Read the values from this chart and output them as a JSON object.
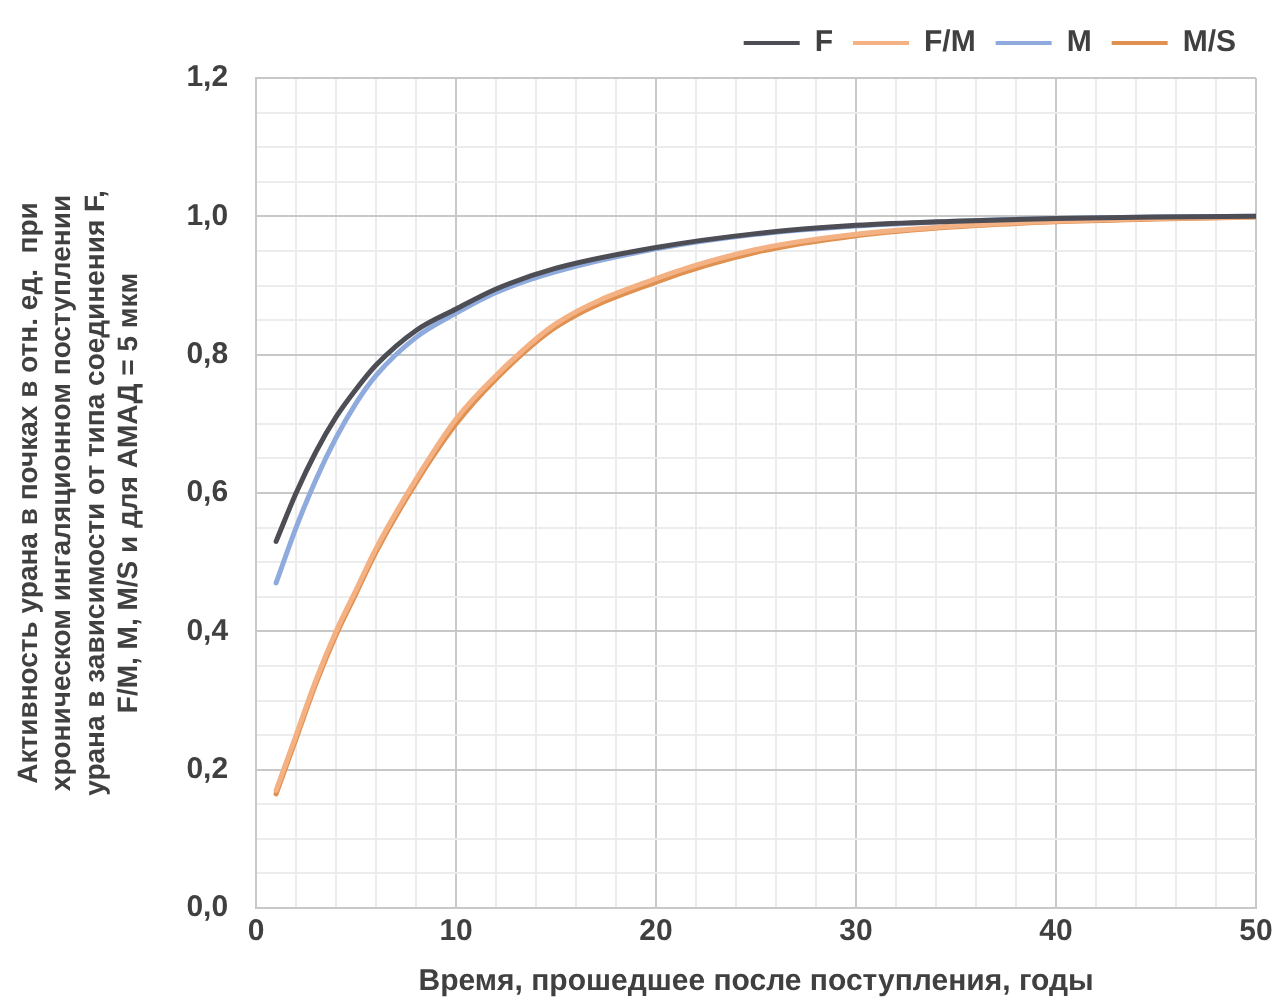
{
  "chart_data": {
    "type": "line",
    "xlabel": "Время, прошедшее после поступления, годы",
    "ylabel": "Активность урана в почках в отн. ед.  при\nхроническом ингаляционном поступлении\nурана в зависимости от типа соединения F,\nF/M, M, M/S и для АМАД = 5 мкм",
    "x": [
      1,
      2,
      3,
      4,
      5,
      6,
      8,
      10,
      12,
      15,
      20,
      25,
      30,
      35,
      40,
      45,
      50
    ],
    "series": [
      {
        "name": "F",
        "color": "#4d4d55",
        "values": [
          0.53,
          0.6,
          0.66,
          0.71,
          0.75,
          0.785,
          0.835,
          0.866,
          0.895,
          0.925,
          0.955,
          0.975,
          0.987,
          0.993,
          0.997,
          0.999,
          1.0
        ]
      },
      {
        "name": "F/M",
        "color": "#f4b183",
        "values": [
          0.17,
          0.25,
          0.33,
          0.4,
          0.46,
          0.52,
          0.62,
          0.707,
          0.77,
          0.845,
          0.91,
          0.952,
          0.974,
          0.986,
          0.993,
          0.997,
          0.999
        ]
      },
      {
        "name": "M",
        "color": "#8faadc",
        "values": [
          0.47,
          0.55,
          0.62,
          0.68,
          0.73,
          0.77,
          0.825,
          0.86,
          0.89,
          0.92,
          0.953,
          0.974,
          0.986,
          0.993,
          0.997,
          0.999,
          1.0
        ]
      },
      {
        "name": "M/S",
        "color": "#e0904f",
        "values": [
          0.165,
          0.245,
          0.325,
          0.395,
          0.455,
          0.515,
          0.615,
          0.7,
          0.765,
          0.84,
          0.905,
          0.948,
          0.972,
          0.985,
          0.992,
          0.996,
          0.999
        ]
      }
    ],
    "xlim": [
      0,
      50
    ],
    "xticks": [
      0,
      {
        "value": 2,
        "label": null
      },
      {
        "value": 4,
        "label": null
      },
      {
        "value": 6,
        "label": null
      },
      {
        "value": 8,
        "label": null
      },
      10,
      {
        "value": 12,
        "label": null
      },
      {
        "value": 14,
        "label": null
      },
      {
        "value": 16,
        "label": null
      },
      {
        "value": 18,
        "label": null
      },
      20,
      {
        "value": 22,
        "label": null
      },
      {
        "value": 24,
        "label": null
      },
      {
        "value": 26,
        "label": null
      },
      {
        "value": 28,
        "label": null
      },
      30,
      {
        "value": 32,
        "label": null
      },
      {
        "value": 34,
        "label": null
      },
      {
        "value": 36,
        "label": null
      },
      {
        "value": 38,
        "label": null
      },
      40,
      {
        "value": 42,
        "label": null
      },
      {
        "value": 44,
        "label": null
      },
      {
        "value": 46,
        "label": null
      },
      {
        "value": 48,
        "label": null
      },
      50
    ],
    "ylim": [
      0,
      1.2
    ],
    "yticks": [
      {
        "value": 0,
        "label": "0,0"
      },
      {
        "value": 0.05,
        "label": null
      },
      {
        "value": 0.1,
        "label": null
      },
      {
        "value": 0.15,
        "label": null
      },
      {
        "value": 0.2,
        "label": "0,2"
      },
      {
        "value": 0.25,
        "label": null
      },
      {
        "value": 0.3,
        "label": null
      },
      {
        "value": 0.35,
        "label": null
      },
      {
        "value": 0.4,
        "label": "0,4"
      },
      {
        "value": 0.45,
        "label": null
      },
      {
        "value": 0.5,
        "label": null
      },
      {
        "value": 0.55,
        "label": null
      },
      {
        "value": 0.6,
        "label": "0,6"
      },
      {
        "value": 0.65,
        "label": null
      },
      {
        "value": 0.7,
        "label": null
      },
      {
        "value": 0.75,
        "label": null
      },
      {
        "value": 0.8,
        "label": "0,8"
      },
      {
        "value": 0.85,
        "label": null
      },
      {
        "value": 0.9,
        "label": null
      },
      {
        "value": 0.95,
        "label": null
      },
      {
        "value": 1.0,
        "label": "1,0"
      },
      {
        "value": 1.05,
        "label": null
      },
      {
        "value": 1.1,
        "label": null
      },
      {
        "value": 1.15,
        "label": null
      },
      {
        "value": 1.2,
        "label": "1,2"
      }
    ],
    "grid": true,
    "legend": "top right",
    "marker": "none",
    "line_style": "solid"
  }
}
